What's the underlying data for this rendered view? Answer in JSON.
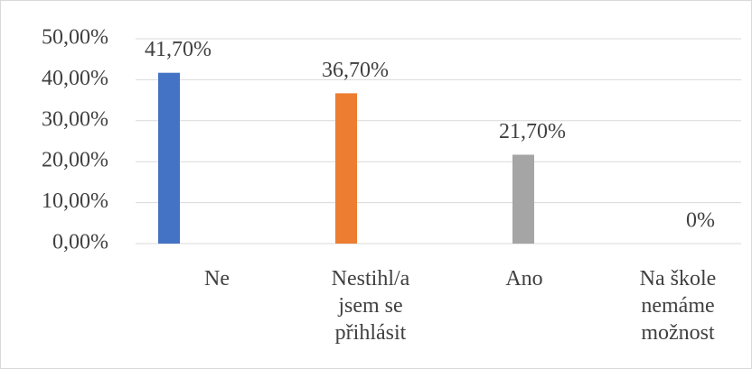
{
  "chart_data": {
    "type": "bar",
    "categories": [
      "Ne",
      "Nestihl/a jsem se přihlásit",
      "Ano",
      "Na škole nemáme možnost"
    ],
    "values": [
      41.7,
      36.7,
      21.7,
      0
    ],
    "value_labels": [
      "41,70%",
      "36,70%",
      "21,70%",
      "0%"
    ],
    "colors": [
      "#4472c4",
      "#ed7d31",
      "#a5a5a5",
      "#ffc000"
    ],
    "ylim": [
      0,
      50
    ],
    "yticks": [
      {
        "value": 0,
        "label": "0,00%"
      },
      {
        "value": 10,
        "label": "10,00%"
      },
      {
        "value": 20,
        "label": "20,00%"
      },
      {
        "value": 30,
        "label": "30,00%"
      },
      {
        "value": 40,
        "label": "40,00%"
      },
      {
        "value": 50,
        "label": "50,00%"
      }
    ],
    "grid": true
  }
}
